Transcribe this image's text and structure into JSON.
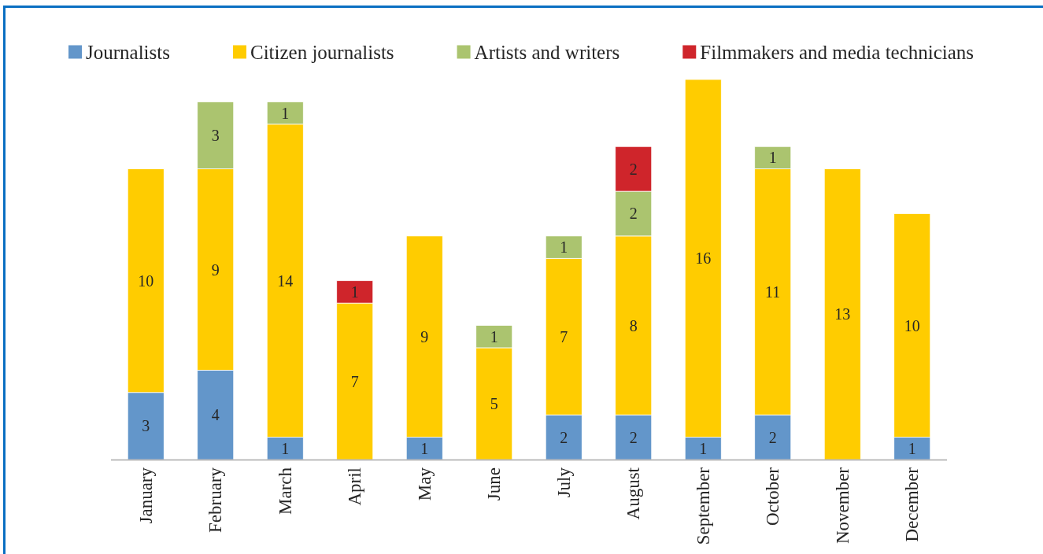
{
  "chart_data": {
    "type": "bar",
    "stacked": true,
    "data_labels": true,
    "legend": "top",
    "categories": [
      "January",
      "February",
      "March",
      "April",
      "May",
      "June",
      "July",
      "August",
      "September",
      "October",
      "November",
      "December"
    ],
    "series": [
      {
        "name": "Journalists",
        "color": "#6396ca",
        "values": [
          3,
          4,
          1,
          null,
          1,
          null,
          2,
          2,
          1,
          2,
          null,
          1
        ]
      },
      {
        "name": "Citizen journalists",
        "color": "#ffcc00",
        "values": [
          10,
          9,
          14,
          7,
          9,
          5,
          7,
          8,
          16,
          11,
          13,
          10
        ]
      },
      {
        "name": "Artists and writers",
        "color": "#abc46f",
        "values": [
          null,
          3,
          1,
          null,
          null,
          1,
          1,
          2,
          null,
          1,
          null,
          null
        ]
      },
      {
        "name": "Filmmakers and media technicians",
        "color": "#cf252b",
        "values": [
          null,
          null,
          null,
          1,
          null,
          null,
          null,
          2,
          null,
          null,
          null,
          null
        ]
      }
    ]
  }
}
